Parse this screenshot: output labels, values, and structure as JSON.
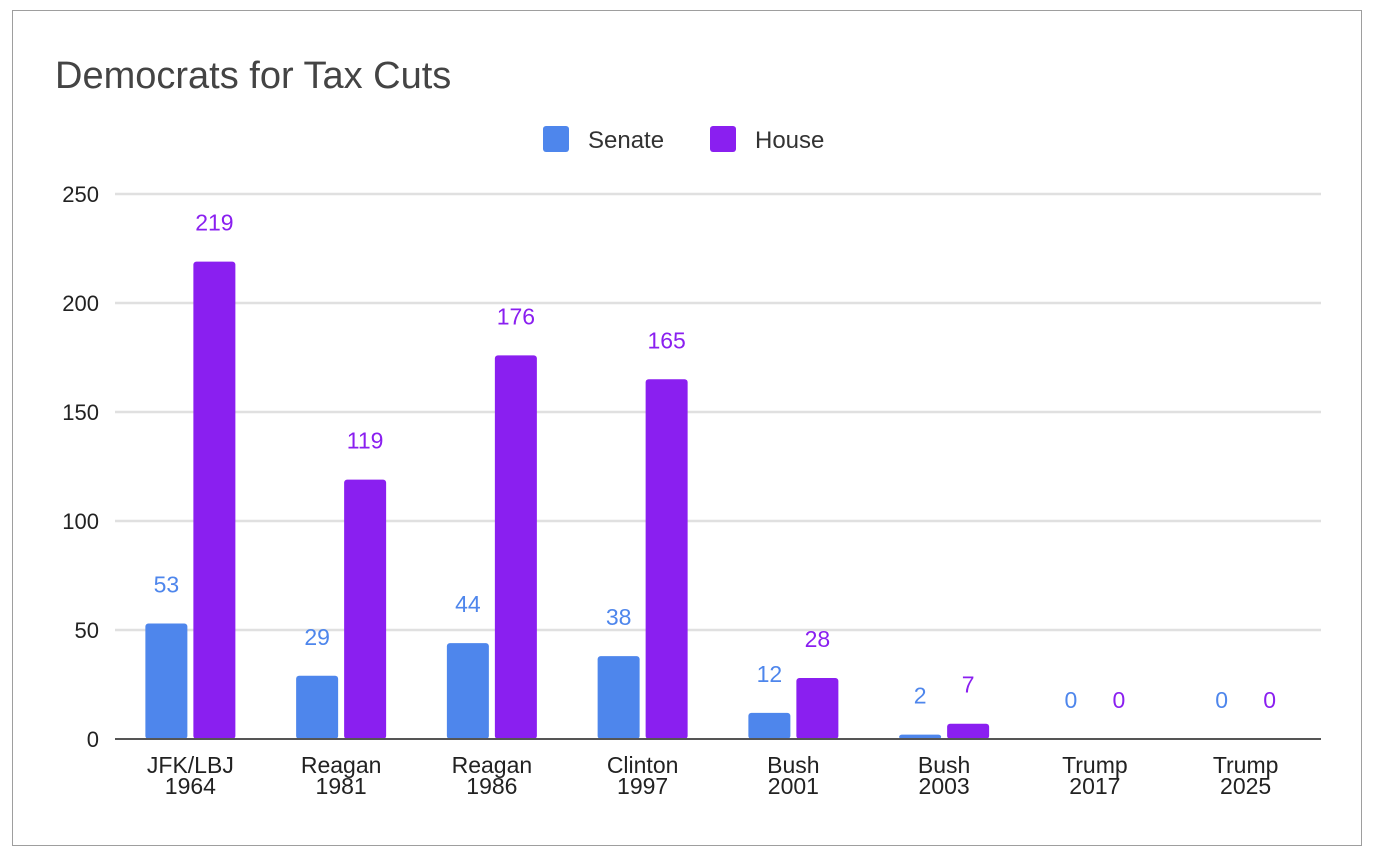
{
  "chart_data": {
    "type": "bar",
    "title": "Democrats for Tax Cuts",
    "xlabel": "",
    "ylabel": "",
    "ylim": [
      0,
      250
    ],
    "yticks": [
      0,
      50,
      100,
      150,
      200,
      250
    ],
    "grid": true,
    "legend_position": "top-center",
    "categories": [
      [
        "JFK/LBJ",
        "1964"
      ],
      [
        "Reagan",
        "1981"
      ],
      [
        "Reagan",
        "1986"
      ],
      [
        "Clinton",
        "1997"
      ],
      [
        "Bush",
        "2001"
      ],
      [
        "Bush",
        "2003"
      ],
      [
        "Trump",
        "2017"
      ],
      [
        "Trump",
        "2025"
      ]
    ],
    "series": [
      {
        "name": "Senate",
        "color": "#4e86ec",
        "values": [
          53,
          29,
          44,
          38,
          12,
          2,
          0,
          0
        ]
      },
      {
        "name": "House",
        "color": "#8a1ff0",
        "values": [
          219,
          119,
          176,
          165,
          28,
          7,
          0,
          0
        ]
      }
    ],
    "gridline_color": "#e0e0e0",
    "axis_color": "#555555"
  }
}
